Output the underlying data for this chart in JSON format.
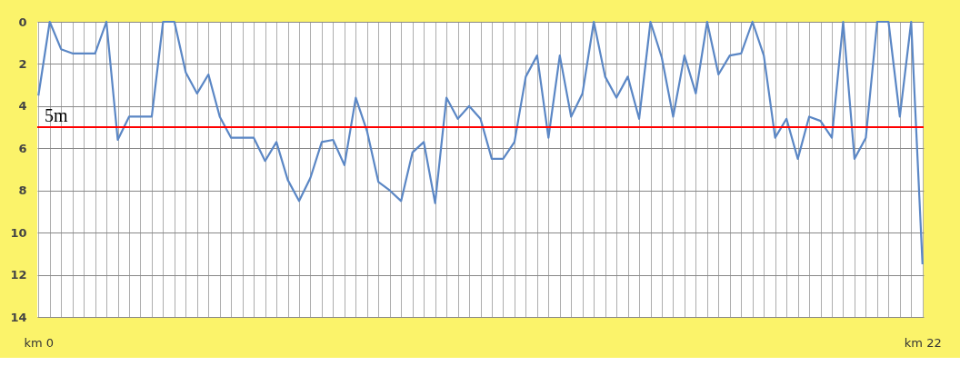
{
  "chart_data": {
    "type": "line",
    "categories": [
      "km 0",
      null,
      null,
      null,
      null,
      null,
      null,
      null,
      null,
      null,
      null,
      null,
      null,
      null,
      null,
      null,
      null,
      null,
      null,
      null,
      null,
      null,
      null,
      null,
      null,
      null,
      null,
      null,
      null,
      null,
      null,
      null,
      null,
      null,
      null,
      null,
      null,
      null,
      null,
      null,
      null,
      null,
      null,
      null,
      null,
      null,
      null,
      null,
      null,
      null,
      null,
      null,
      null,
      null,
      null,
      null,
      null,
      null,
      null,
      null,
      null,
      null,
      null,
      null,
      null,
      null,
      null,
      null,
      null,
      null,
      null,
      null,
      null,
      null,
      null,
      null,
      null,
      null,
      "km 22"
    ],
    "series": [
      {
        "color": "#5b87c5",
        "values": [
          3.5,
          0,
          1.3,
          1.5,
          1.5,
          1.5,
          0,
          5.6,
          4.5,
          4.5,
          4.5,
          0,
          0,
          2.4,
          3.4,
          2.5,
          4.5,
          5.5,
          5.5,
          5.5,
          6.6,
          5.7,
          7.5,
          8.5,
          7.4,
          5.7,
          5.6,
          6.8,
          3.6,
          5.2,
          7.6,
          8.0,
          8.5,
          6.2,
          5.7,
          8.6,
          3.6,
          4.6,
          4.0,
          4.6,
          6.5,
          6.5,
          5.7,
          2.6,
          1.6,
          5.5,
          1.6,
          4.5,
          3.4,
          0,
          2.6,
          3.6,
          2.6,
          4.6,
          0,
          1.7,
          4.5,
          1.6,
          3.4,
          0,
          2.5,
          1.6,
          1.5,
          0,
          1.6,
          5.5,
          4.6,
          6.5,
          4.5,
          4.7,
          5.5,
          0,
          6.5,
          5.5,
          0,
          0,
          4.5,
          0,
          11.5
        ]
      }
    ],
    "ylim": [
      14,
      0
    ],
    "yticks": [
      0,
      2,
      4,
      6,
      8,
      10,
      12,
      14
    ],
    "ref_lines": [
      {
        "axis": "y",
        "value": 5,
        "label": "5m",
        "color": "#ff0000"
      }
    ],
    "grid": true,
    "marker": "none"
  }
}
